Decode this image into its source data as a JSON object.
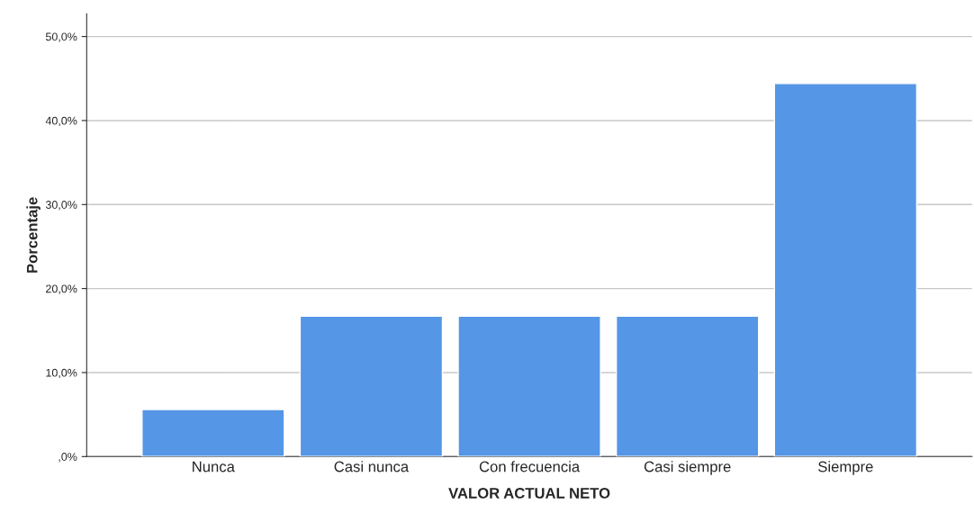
{
  "chart_data": {
    "type": "bar",
    "xlabel": "VALOR ACTUAL NETO",
    "ylabel": "Porcentaje",
    "categories": [
      "Nunca",
      "Casi nunca",
      "Con frecuencia",
      "Casi siempre",
      "Siempre"
    ],
    "values": [
      5.6,
      16.7,
      16.7,
      16.7,
      44.4
    ],
    "color": "#5596e6",
    "ylim": [
      0,
      52.7
    ],
    "yticks": [
      {
        "value": 0,
        "label": ",0%"
      },
      {
        "value": 10,
        "label": "10,0%"
      },
      {
        "value": 20,
        "label": "20,0%"
      },
      {
        "value": 30,
        "label": "30,0%"
      },
      {
        "value": 40,
        "label": "40,0%"
      },
      {
        "value": 50,
        "label": "50,0%"
      }
    ],
    "grid": "y"
  }
}
